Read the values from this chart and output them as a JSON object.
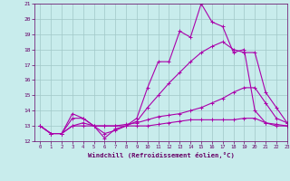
{
  "xlabel": "Windchill (Refroidissement éolien,°C)",
  "xlim": [
    -0.5,
    23
  ],
  "ylim": [
    12,
    21
  ],
  "yticks": [
    12,
    13,
    14,
    15,
    16,
    17,
    18,
    19,
    20,
    21
  ],
  "xticks": [
    0,
    1,
    2,
    3,
    4,
    5,
    6,
    7,
    8,
    9,
    10,
    11,
    12,
    13,
    14,
    15,
    16,
    17,
    18,
    19,
    20,
    21,
    22,
    23
  ],
  "bg_color": "#c8ecec",
  "grid_color": "#a0c8c8",
  "line_color": "#aa00aa",
  "curves": [
    {
      "x": [
        0,
        1,
        2,
        3,
        4,
        5,
        6,
        7,
        8,
        9,
        10,
        11,
        12,
        13,
        14,
        15,
        16,
        17,
        18,
        19,
        20,
        21,
        22,
        23
      ],
      "y": [
        13.0,
        12.5,
        12.5,
        13.8,
        13.5,
        13.0,
        12.2,
        12.8,
        13.0,
        13.5,
        15.5,
        17.2,
        17.2,
        19.2,
        18.8,
        21.0,
        19.8,
        19.5,
        17.8,
        18.0,
        14.0,
        13.2,
        13.0,
        13.0
      ]
    },
    {
      "x": [
        0,
        1,
        2,
        3,
        4,
        5,
        6,
        7,
        8,
        9,
        10,
        11,
        12,
        13,
        14,
        15,
        16,
        17,
        18,
        19,
        20,
        21,
        22,
        23
      ],
      "y": [
        13.0,
        12.5,
        12.5,
        13.5,
        13.5,
        13.0,
        12.5,
        12.7,
        13.0,
        13.3,
        14.2,
        15.0,
        15.8,
        16.5,
        17.2,
        17.8,
        18.2,
        18.5,
        18.0,
        17.8,
        17.8,
        15.2,
        14.2,
        13.2
      ]
    },
    {
      "x": [
        0,
        1,
        2,
        3,
        4,
        5,
        6,
        7,
        8,
        9,
        10,
        11,
        12,
        13,
        14,
        15,
        16,
        17,
        18,
        19,
        20,
        21,
        22,
        23
      ],
      "y": [
        13.0,
        12.5,
        12.5,
        13.0,
        13.2,
        13.0,
        13.0,
        13.0,
        13.1,
        13.2,
        13.4,
        13.6,
        13.7,
        13.8,
        14.0,
        14.2,
        14.5,
        14.8,
        15.2,
        15.5,
        15.5,
        14.5,
        13.5,
        13.2
      ]
    },
    {
      "x": [
        0,
        1,
        2,
        3,
        4,
        5,
        6,
        7,
        8,
        9,
        10,
        11,
        12,
        13,
        14,
        15,
        16,
        17,
        18,
        19,
        20,
        21,
        22,
        23
      ],
      "y": [
        13.0,
        12.5,
        12.5,
        13.0,
        13.0,
        13.0,
        13.0,
        13.0,
        13.0,
        13.0,
        13.0,
        13.1,
        13.2,
        13.3,
        13.4,
        13.4,
        13.4,
        13.4,
        13.4,
        13.5,
        13.5,
        13.2,
        13.1,
        13.0
      ]
    }
  ]
}
